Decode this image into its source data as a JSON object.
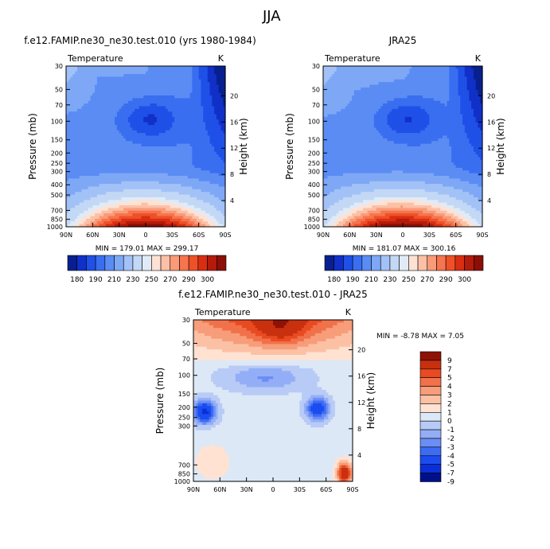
{
  "page_title": "JJA",
  "panels": [
    {
      "id": "model",
      "title": "f.e12.FAMIP.ne30_ne30.test.010 (yrs 1980-1984)",
      "left_label": "Temperature",
      "right_label": "K",
      "ylabel": "Pressure (mb)",
      "y2label": "Height (km)",
      "stats": "MIN = 179.01   MAX = 299.17"
    },
    {
      "id": "obs",
      "title": "JRA25",
      "left_label": "Temperature",
      "right_label": "K",
      "ylabel": "Pressure (mb)",
      "y2label": "Height (km)",
      "stats": "MIN = 181.07   MAX = 300.16"
    },
    {
      "id": "diff",
      "title": "f.e12.FAMIP.ne30_ne30.test.010 - JRA25",
      "left_label": "Temperature",
      "right_label": "K",
      "ylabel": "Pressure (mb)",
      "y2label": "Height (km)",
      "stats": "MIN =   -8.78  MAX =    7.05"
    }
  ],
  "chart_data": [
    {
      "type": "heatmap",
      "title": "f.e12.FAMIP.ne30_ne30.test.010 (yrs 1980-1984)",
      "xlabel": "",
      "ylabel": "Pressure (mb)",
      "y2label": "Height (km)",
      "x_ticks": [
        "90N",
        "60N",
        "30N",
        "0",
        "30S",
        "60S",
        "90S"
      ],
      "y_ticks": [
        "30",
        "50",
        "70",
        "100",
        "150",
        "200",
        "250",
        "300",
        "400",
        "500",
        "700",
        "850",
        "1000"
      ],
      "y2_ticks": [
        "4",
        "8",
        "12",
        "16",
        "20"
      ],
      "units": "K",
      "min": 179.01,
      "max": 299.17,
      "colorbar_levels": [
        "180",
        "190",
        "210",
        "230",
        "250",
        "270",
        "290",
        "300"
      ]
    },
    {
      "type": "heatmap",
      "title": "JRA25",
      "xlabel": "",
      "ylabel": "Pressure (mb)",
      "y2label": "Height (km)",
      "x_ticks": [
        "90N",
        "60N",
        "30N",
        "0",
        "30S",
        "60S",
        "90S"
      ],
      "y_ticks": [
        "30",
        "50",
        "70",
        "100",
        "150",
        "200",
        "250",
        "300",
        "400",
        "500",
        "700",
        "850",
        "1000"
      ],
      "y2_ticks": [
        "4",
        "8",
        "12",
        "16",
        "20"
      ],
      "units": "K",
      "min": 181.07,
      "max": 300.16,
      "colorbar_levels": [
        "180",
        "190",
        "210",
        "230",
        "250",
        "270",
        "290",
        "300"
      ]
    },
    {
      "type": "heatmap",
      "title": "f.e12.FAMIP.ne30_ne30.test.010 - JRA25",
      "xlabel": "",
      "ylabel": "Pressure (mb)",
      "y2label": "Height (km)",
      "x_ticks": [
        "90N",
        "60N",
        "30N",
        "0",
        "30S",
        "60S",
        "90S"
      ],
      "y_ticks": [
        "30",
        "50",
        "70",
        "100",
        "150",
        "200",
        "250",
        "300",
        "700",
        "850",
        "1000"
      ],
      "y2_ticks": [
        "4",
        "8",
        "12",
        "16",
        "20"
      ],
      "units": "K",
      "min": -8.78,
      "max": 7.05,
      "colorbar_levels": [
        "9",
        "7",
        "5",
        "4",
        "3",
        "2",
        "1",
        "0",
        "-1",
        "-2",
        "-3",
        "-4",
        "-5",
        "-7",
        "-9"
      ]
    }
  ],
  "colors": {
    "abs_scale": [
      "#08208f",
      "#1030c8",
      "#1f50e8",
      "#3a6ef0",
      "#5a8cf4",
      "#7ea8f6",
      "#a2c2f7",
      "#c3d8f5",
      "#e0ebf7",
      "#fde2d4",
      "#fcc0a6",
      "#f99b78",
      "#f6744e",
      "#ee5128",
      "#d92e12",
      "#b31b0b",
      "#8a0f06"
    ],
    "diff_scale": [
      "#000f8a",
      "#0a2fd8",
      "#1b4cf0",
      "#3d6cf3",
      "#6a8ef5",
      "#93aef6",
      "#b8caf6",
      "#dce8f6",
      "#ffe2d2",
      "#fcc1a5",
      "#f79d79",
      "#f1714b",
      "#e94a22",
      "#c8300f",
      "#8e1206"
    ]
  }
}
